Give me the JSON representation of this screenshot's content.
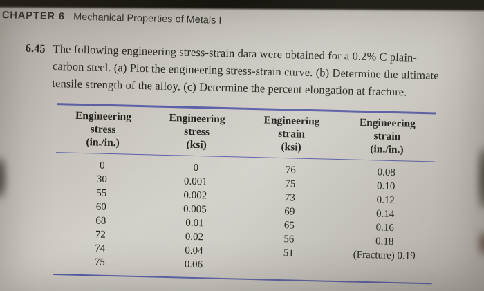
{
  "header": {
    "chapter_label": "CHAPTER 6",
    "chapter_title": "Mechanical Properties of Metals I"
  },
  "problem": {
    "number": "6.45",
    "text": "The following engineering stress-strain data were obtained for a 0.2% C plain-\ncarbon steel. (a) Plot the engineering stress-strain curve. (b) Determine the ultimate\ntensile strength of the alloy. (c) Determine the percent elongation at fracture."
  },
  "table": {
    "rule_color": "#5a5fa8",
    "headers": [
      "Engineering\nstress\n(in./in.)",
      "Engineering\nstress\n(ksi)",
      "Engineering\nstrain\n(ksi)",
      "Engineering\nstrain\n(in./in.)"
    ],
    "rows": [
      [
        "0",
        "0",
        "76",
        "0.08"
      ],
      [
        "30",
        "0.001",
        "75",
        "0.10"
      ],
      [
        "55",
        "0.002",
        "73",
        "0.12"
      ],
      [
        "60",
        "0.005",
        "69",
        "0.14"
      ],
      [
        "68",
        "0.01",
        "65",
        "0.16"
      ],
      [
        "72",
        "0.02",
        "56",
        "0.18"
      ],
      [
        "74",
        "0.04",
        "51",
        "(Fracture) 0.19"
      ],
      [
        "75",
        "0.06",
        "",
        ""
      ]
    ]
  }
}
